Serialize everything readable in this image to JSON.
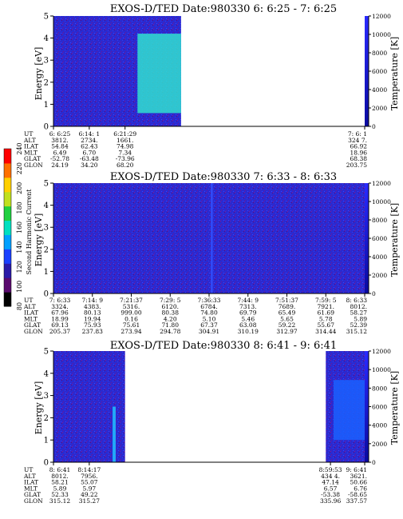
{
  "colorbar": {
    "label": "Second Harmonic Current",
    "ticks": [
      "80",
      "100",
      "120",
      "140",
      "160",
      "180",
      "200",
      "220",
      "240"
    ],
    "colors": [
      "#000000",
      "#5a0a6e",
      "#2a1aa8",
      "#1a40ff",
      "#00a0ff",
      "#00e0c0",
      "#20d040",
      "#c0e020",
      "#ffd000",
      "#ff7000",
      "#ff0000"
    ]
  },
  "chart_data": [
    {
      "type": "heatmap",
      "title": "EXOS-D/TED   Date:980330  6: 6:25 - 7: 6:25",
      "ylabel": "Energy [eV]",
      "ylabel_right": "Temperature [K]",
      "ylim": [
        0,
        5
      ],
      "yticks": [
        "0",
        "1",
        "2",
        "3",
        "4",
        "5"
      ],
      "ylim_right": [
        0,
        12000
      ],
      "yticks_right": [
        "0",
        "2000",
        "4000",
        "6000",
        "8000",
        "10000",
        "12000"
      ],
      "coverage": [
        0.0,
        0.41
      ],
      "features": [
        {
          "name": "bright-band",
          "x": [
            0.27,
            0.41
          ],
          "y": [
            0.6,
            4.2
          ],
          "color": "#30e0d0"
        }
      ],
      "row_labels": [
        "UT",
        "ALT",
        "ILAT",
        "MLT",
        "GLAT",
        "GLON"
      ],
      "columns": [
        {
          "at": 0.0,
          "values": [
            "6: 6:25",
            "3812.",
            "54.84",
            "6.49",
            "-52.78",
            "24.19"
          ]
        },
        {
          "at": 0.115,
          "values": [
            "6:14: 1",
            "2734.",
            "62.43",
            "6.70",
            "-63.48",
            "34.20"
          ]
        },
        {
          "at": 0.23,
          "values": [
            "6:21:29",
            "1661.",
            "74.98",
            "7.34",
            "-73.96",
            "68.20"
          ]
        },
        {
          "at": 1.0,
          "values": [
            "7: 6: 1",
            "324 7.",
            "66.92",
            "18.96",
            "68.38",
            "203.75"
          ]
        }
      ]
    },
    {
      "type": "heatmap",
      "title": "EXOS-D/TED   Date:980330  7: 6:33 - 8: 6:33",
      "ylabel": "Energy [eV]",
      "ylabel_right": "Temperature [K]",
      "ylim": [
        0,
        5
      ],
      "yticks": [
        "0",
        "1",
        "2",
        "3",
        "4",
        "5"
      ],
      "ylim_right": [
        0,
        12000
      ],
      "yticks_right": [
        "0",
        "2000",
        "4000",
        "6000",
        "8000",
        "10000",
        "12000"
      ],
      "coverage": [
        0.0,
        1.0
      ],
      "features": [
        {
          "name": "vertical-stripe",
          "x": [
            0.505,
            0.512
          ],
          "y": [
            0,
            5
          ],
          "color": "#3050ff"
        }
      ],
      "row_labels": [
        "UT",
        "ALT",
        "ILAT",
        "MLT",
        "GLAT",
        "GLON"
      ],
      "columns": [
        {
          "at": 0.0,
          "values": [
            "7: 6:33",
            "3324.",
            "67.96",
            "18.99",
            "69.13",
            "205.37"
          ]
        },
        {
          "at": 0.125,
          "values": [
            "7:14: 9",
            "4383.",
            "80.13",
            "19.94",
            "75.93",
            "237.83"
          ]
        },
        {
          "at": 0.25,
          "values": [
            "7:21:37",
            "5316.",
            "999.00",
            "0.16",
            "75.61",
            "273.94"
          ]
        },
        {
          "at": 0.375,
          "values": [
            "7:29: 5",
            "6120.",
            "80.38",
            "4.20",
            "71.80",
            "294.78"
          ]
        },
        {
          "at": 0.5,
          "values": [
            "7:36:33",
            "6784.",
            "74.80",
            "5.10",
            "67.37",
            "304.91"
          ]
        },
        {
          "at": 0.625,
          "values": [
            "7:44: 9",
            "7313.",
            "69.79",
            "5.46",
            "63.08",
            "310.19"
          ]
        },
        {
          "at": 0.75,
          "values": [
            "7:51:37",
            "7689.",
            "65.49",
            "5.65",
            "59.22",
            "312.97"
          ]
        },
        {
          "at": 0.875,
          "values": [
            "7:59: 5",
            "7921.",
            "61.69",
            "5.78",
            "55.67",
            "314.44"
          ]
        },
        {
          "at": 1.0,
          "values": [
            "8: 6:33",
            "8012.",
            "58.27",
            "5.89",
            "52.39",
            "315.12"
          ]
        }
      ]
    },
    {
      "type": "heatmap",
      "title": "EXOS-D/TED   Date:980330  8: 6:41 - 9: 6:41",
      "ylabel": "Energy [eV]",
      "ylabel_right": "Temperature [K]",
      "ylim": [
        0,
        5
      ],
      "yticks": [
        "0",
        "1",
        "2",
        "3",
        "4",
        "5"
      ],
      "ylim_right": [
        0,
        12000
      ],
      "yticks_right": [
        "0",
        "2000",
        "4000",
        "6000",
        "8000",
        "10000",
        "12000"
      ],
      "coverage": [
        0.0,
        0.23
      ],
      "coverage2": [
        0.875,
        1.0
      ],
      "features": [
        {
          "name": "spike",
          "x": [
            0.19,
            0.2
          ],
          "y": [
            0,
            2.5
          ],
          "color": "#20c0ff"
        },
        {
          "name": "right-band",
          "x": [
            0.9,
            1.0
          ],
          "y": [
            1.0,
            3.7
          ],
          "color": "#1a60ff"
        }
      ],
      "row_labels": [
        "UT",
        "ALT",
        "ILAT",
        "MLT",
        "GLAT",
        "GLON"
      ],
      "columns": [
        {
          "at": 0.0,
          "values": [
            "8: 6:41",
            "8012.",
            "58.21",
            "5.89",
            "52.33",
            "315.12"
          ]
        },
        {
          "at": 0.115,
          "values": [
            "8:14:17",
            "7956.",
            "55.07",
            "5.97",
            "49.22",
            "315.27"
          ]
        },
        {
          "at": 0.89,
          "values": [
            "8:59:53",
            "434 4.",
            "47.14",
            "6.57",
            "-53.38",
            "335.96"
          ]
        },
        {
          "at": 1.0,
          "values": [
            "9: 6:41",
            "3621.",
            "50.66",
            "6.76",
            "-58.65",
            "337.57"
          ]
        }
      ]
    }
  ]
}
